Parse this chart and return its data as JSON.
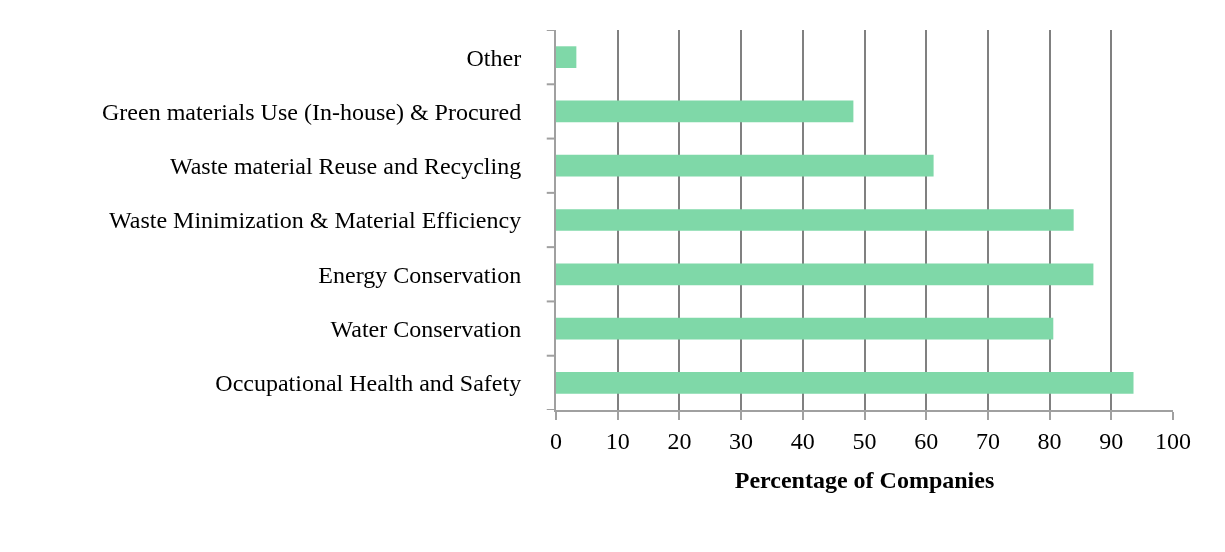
{
  "chart_data": {
    "type": "bar",
    "orientation": "horizontal",
    "xlabel": "Percentage of Companies",
    "categories": [
      "Other",
      "Green materials Use (In-house) & Procured",
      "Waste material Reuse and Recycling",
      "Waste Minimization & Material Efficiency",
      "Energy Conservation",
      "Water Conservation",
      "Occupational Health and Safety"
    ],
    "values": [
      3.3,
      48.2,
      61.2,
      83.9,
      87.1,
      80.6,
      93.6
    ],
    "color": "#7fd8a8",
    "xlim": [
      0,
      100
    ],
    "xticks": [
      0,
      10,
      20,
      30,
      40,
      50,
      60,
      70,
      80,
      90,
      100
    ],
    "grid": "x"
  }
}
